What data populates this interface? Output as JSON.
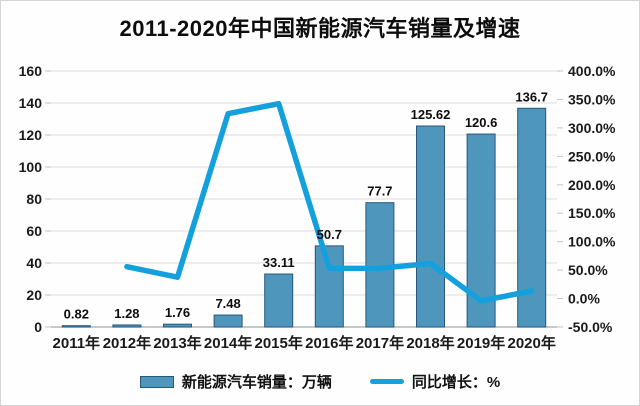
{
  "chart_data": {
    "type": "bar",
    "title": "2011-2020年中国新能源汽车销量及增速",
    "categories": [
      "2011年",
      "2012年",
      "2013年",
      "2014年",
      "2015年",
      "2016年",
      "2017年",
      "2018年",
      "2019年",
      "2020年"
    ],
    "series": [
      {
        "name": "新能源汽车销量：万辆",
        "type": "bar",
        "y_axis": "left",
        "values": [
          0.82,
          1.28,
          1.76,
          7.48,
          33.11,
          50.7,
          77.7,
          125.62,
          120.6,
          136.7
        ],
        "data_labels": [
          "0.82",
          "1.28",
          "1.76",
          "7.48",
          "33.11",
          "50.7",
          "77.7",
          "125.62",
          "120.6",
          "136.7"
        ],
        "fill": "#4f96bd",
        "stroke": "#27587a"
      },
      {
        "name": "同比增长：%",
        "type": "line",
        "y_axis": "right",
        "values": [
          null,
          56.1,
          37.5,
          325.0,
          342.6,
          53.1,
          53.3,
          61.7,
          -4.0,
          13.3
        ],
        "color": "#14a0dc"
      }
    ],
    "left_axis": {
      "min": 0,
      "max": 160,
      "step": 20,
      "tick_labels": [
        "160",
        "140",
        "120",
        "100",
        "80",
        "60",
        "40",
        "20",
        "0"
      ]
    },
    "right_axis": {
      "min": -50,
      "max": 400,
      "step": 50,
      "tick_labels": [
        "400.0%",
        "350.0%",
        "300.0%",
        "250.0%",
        "200.0%",
        "150.0%",
        "100.0%",
        "50.0%",
        "0.0%",
        "-50.0%"
      ]
    },
    "grid": true,
    "legend_position": "bottom"
  },
  "colors": {
    "bar_fill": "#4f96bd",
    "bar_stroke": "#27587a",
    "line": "#14a0dc",
    "gridline": "#dcdcdc",
    "axis_line": "#a8a8a8",
    "tick_mark": "#c4c4c4",
    "text": "#1a1a1a"
  }
}
